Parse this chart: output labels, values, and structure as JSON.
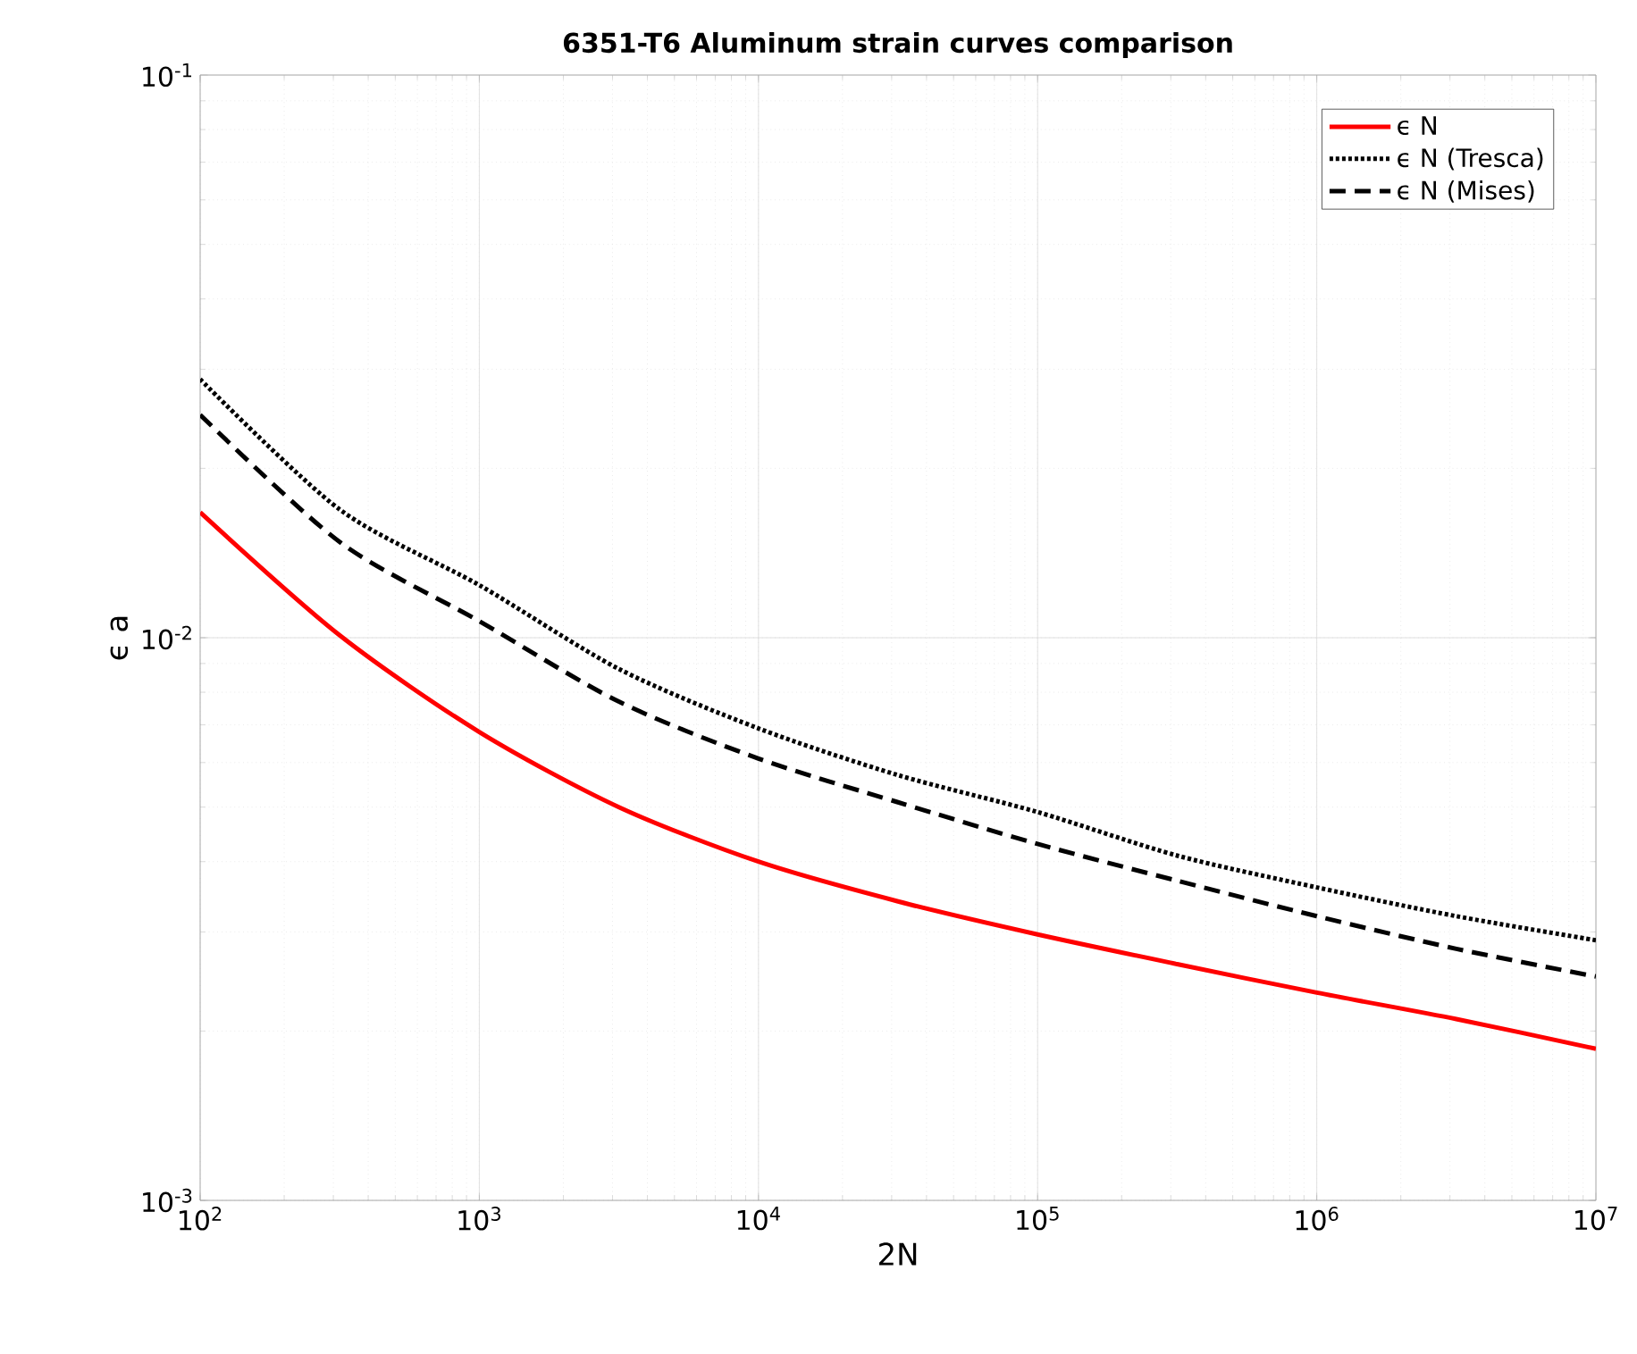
{
  "chart_data": {
    "type": "line",
    "title": "6351-T6 Aluminum strain curves comparison",
    "xlabel": "2N",
    "ylabel": "ϵ a",
    "log": "xy",
    "grid": true,
    "legend": "top right",
    "x": [
      100,
      316,
      1000,
      3162,
      10000,
      31623,
      100000,
      316228,
      1000000,
      3162278,
      10000000
    ],
    "xlim": [
      100,
      10000000
    ],
    "ylim": [
      0.001,
      0.1
    ],
    "xticks": [
      {
        "value": 100,
        "label": "10$^{2}$"
      },
      {
        "value": 1000,
        "label": "10$^{3}$"
      },
      {
        "value": 10000,
        "label": "10$^{4}$"
      },
      {
        "value": 100000,
        "label": "10$^{5}$"
      },
      {
        "value": 1000000,
        "label": "10$^{6}$"
      },
      {
        "value": 10000000,
        "label": "10$^{7}$"
      }
    ],
    "yticks": [
      {
        "value": 0.001,
        "label": "10$^{-3}$"
      },
      {
        "value": 0.01,
        "label": "10$^{-2}$"
      },
      {
        "value": 0.1,
        "label": "10$^{-1}$"
      }
    ],
    "series": [
      {
        "name": "ϵ N",
        "color": "#ff0000",
        "line_style": "solid",
        "values": [
          0.0167,
          0.0101,
          0.0068,
          0.005,
          0.004,
          0.0034,
          0.00297,
          0.00263,
          0.00234,
          0.0021,
          0.00186
        ]
      },
      {
        "name": "ϵ N (Tresca)",
        "color": "#000000",
        "line_style": "dotted",
        "values": [
          0.0288,
          0.0169,
          0.0124,
          0.0088,
          0.0069,
          0.0057,
          0.0049,
          0.0041,
          0.0036,
          0.0032,
          0.0029
        ]
      },
      {
        "name": "ϵ N (Mises)",
        "color": "#000000",
        "line_style": "dashed",
        "values": [
          0.0249,
          0.0148,
          0.0107,
          0.0077,
          0.0061,
          0.0051,
          0.0043,
          0.0037,
          0.0032,
          0.0028,
          0.0025
        ]
      }
    ]
  }
}
